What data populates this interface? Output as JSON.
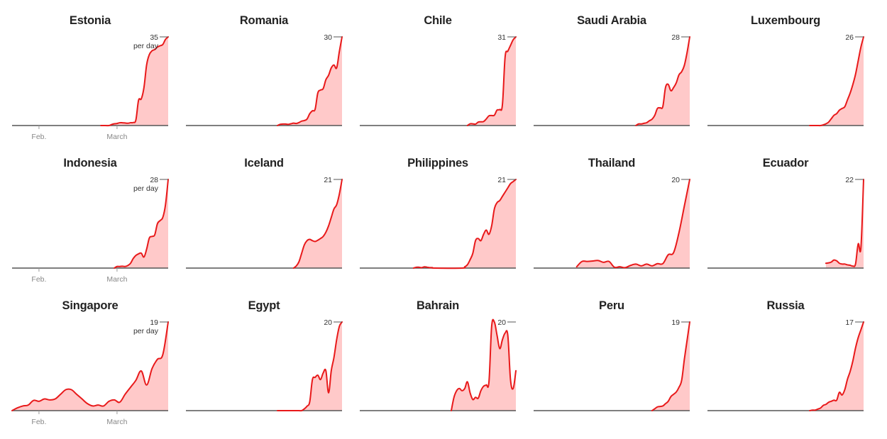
{
  "colors": {
    "line": "#e8191a",
    "fill": "#ffc9c9",
    "axis": "#555555",
    "tick": "#999999",
    "title": "#222222"
  },
  "chart_data": [
    {
      "type": "area",
      "title": "Estonia",
      "ymax": 35,
      "unit": "per day",
      "xaxis": [
        "Feb.",
        "March"
      ],
      "x": [
        55,
        56,
        58,
        59,
        60,
        61,
        62,
        63,
        64,
        65,
        66,
        67,
        68,
        69,
        70,
        71,
        72,
        73,
        74,
        75,
        76,
        77,
        78,
        79,
        80
      ],
      "y": [
        0,
        0,
        0,
        0.4,
        0.7,
        0.8,
        1.1,
        1.1,
        1.0,
        0.9,
        1.1,
        1.2,
        2.2,
        10,
        10.5,
        15,
        24,
        28,
        29.5,
        30,
        31,
        31.5,
        32,
        34,
        35
      ]
    },
    {
      "type": "area",
      "title": "Romania",
      "ymax": 30,
      "xaxis": [],
      "x": [
        56,
        57,
        58,
        59,
        60,
        61,
        62,
        63,
        64,
        65,
        66,
        67,
        68,
        69,
        70,
        71,
        72,
        73,
        74,
        75,
        76,
        77,
        78,
        79,
        80
      ],
      "y": [
        0,
        0.4,
        0.5,
        0.5,
        0.4,
        0.6,
        0.8,
        0.7,
        1.0,
        1.5,
        1.7,
        2.2,
        4,
        5,
        5.5,
        11,
        12,
        12.5,
        15.5,
        17,
        19.5,
        20.5,
        19.5,
        25,
        30
      ]
    },
    {
      "type": "area",
      "title": "Chile",
      "ymax": 31,
      "xaxis": [],
      "x": [
        62,
        63,
        64,
        65,
        66,
        67,
        68,
        69,
        70,
        71,
        72,
        73,
        74,
        75,
        76,
        77,
        78,
        79,
        80
      ],
      "y": [
        0,
        0.6,
        0.6,
        0.5,
        1.2,
        1.3,
        1.4,
        2.3,
        3.4,
        3.5,
        3.6,
        5.4,
        5.6,
        7.3,
        24,
        26,
        28,
        30,
        31
      ]
    },
    {
      "type": "area",
      "title": "Saudi Arabia",
      "ymax": 28,
      "xaxis": [],
      "x": [
        60,
        61,
        62,
        63,
        64,
        65,
        66,
        67,
        68,
        69,
        70,
        71,
        72,
        73,
        74,
        75,
        76,
        77,
        78,
        79,
        80
      ],
      "y": [
        0,
        0.5,
        0.5,
        0.7,
        0.9,
        1.5,
        2.0,
        3.2,
        5.4,
        5.6,
        6.0,
        12,
        13,
        11,
        12,
        13.5,
        16,
        17,
        19,
        23,
        28
      ]
    },
    {
      "type": "area",
      "title": "Luxembourg",
      "ymax": 26,
      "xaxis": [],
      "x": [
        60,
        61,
        62,
        63,
        64,
        65,
        66,
        67,
        68,
        69,
        70,
        71,
        72,
        73,
        74,
        75,
        76,
        77,
        78,
        79,
        80
      ],
      "y": [
        0,
        0,
        0,
        0,
        0,
        0.2,
        0.5,
        1.0,
        2.0,
        3.0,
        3.5,
        4.5,
        5.0,
        5.5,
        7.5,
        9.5,
        12,
        15,
        19,
        23,
        26
      ]
    },
    {
      "type": "area",
      "title": "Indonesia",
      "ymax": 28,
      "unit": "per day",
      "xaxis": [
        "Feb.",
        "March"
      ],
      "x": [
        60,
        61,
        62,
        63,
        64,
        65,
        66,
        67,
        68,
        69,
        70,
        71,
        72,
        73,
        74,
        75,
        76,
        77,
        78,
        79,
        80
      ],
      "y": [
        0,
        0.5,
        0.5,
        0.6,
        0.5,
        0.8,
        1.5,
        3.0,
        4.0,
        4.5,
        4.7,
        3.5,
        6.0,
        9.5,
        10.0,
        10.5,
        14,
        15,
        16,
        20,
        28
      ]
    },
    {
      "type": "area",
      "title": "Iceland",
      "ymax": 21,
      "xaxis": [],
      "x": [
        62,
        63,
        64,
        65,
        66,
        67,
        68,
        69,
        70,
        71,
        72,
        73,
        74,
        75,
        76,
        77,
        78,
        79,
        80
      ],
      "y": [
        0,
        0.5,
        1.5,
        3.5,
        5.5,
        6.5,
        6.8,
        6.5,
        6.3,
        6.6,
        7.0,
        7.5,
        8.5,
        10,
        12,
        14,
        15,
        17.5,
        21
      ]
    },
    {
      "type": "area",
      "title": "Philippines",
      "ymax": 21,
      "xaxis": [],
      "x": [
        42,
        43,
        44,
        45,
        46,
        47,
        48,
        49,
        50,
        60,
        61,
        62,
        63,
        64,
        65,
        66,
        67,
        68,
        69,
        70,
        71,
        72,
        73,
        74,
        75,
        76,
        77,
        78,
        79,
        80
      ],
      "y": [
        0,
        0.2,
        0.2,
        0.1,
        0.3,
        0.2,
        0.1,
        0.1,
        0,
        0,
        0.3,
        0.8,
        2.0,
        3.5,
        6.5,
        7.0,
        6.5,
        8.0,
        9.0,
        8.0,
        10,
        14,
        15.5,
        16,
        17,
        18,
        19,
        20,
        20.5,
        21
      ]
    },
    {
      "type": "area",
      "title": "Thailand",
      "ymax": 20,
      "xaxis": [],
      "x": [
        38,
        40,
        42,
        44,
        46,
        48,
        50,
        52,
        54,
        56,
        58,
        60,
        62,
        64,
        66,
        68,
        70,
        72,
        74,
        76,
        78,
        80
      ],
      "y": [
        0.3,
        1.5,
        1.5,
        1.6,
        1.7,
        1.3,
        1.5,
        0.2,
        0.3,
        0.1,
        0.6,
        0.9,
        0.5,
        0.9,
        0.5,
        1.0,
        1.0,
        3.0,
        3.5,
        8.0,
        14,
        20
      ]
    },
    {
      "type": "area",
      "title": "Ecuador",
      "ymax": 22,
      "xaxis": [],
      "x": [
        66,
        67,
        68,
        69,
        70,
        71,
        72,
        73,
        74,
        75,
        76,
        77,
        78,
        79,
        80
      ],
      "y": [
        1.2,
        1.3,
        1.5,
        2.0,
        1.8,
        1.2,
        1.0,
        1.0,
        0.8,
        0.7,
        0.5,
        1.0,
        6.0,
        5.0,
        22
      ]
    },
    {
      "type": "area",
      "title": "Singapore",
      "ymax": 19,
      "unit": "per day",
      "xaxis": [
        "Feb.",
        "March"
      ],
      "x": [
        22,
        24,
        26,
        28,
        30,
        32,
        34,
        36,
        38,
        40,
        42,
        44,
        46,
        48,
        50,
        52,
        54,
        56,
        58,
        60,
        62,
        64,
        66,
        68,
        70,
        72,
        74,
        76,
        78,
        80
      ],
      "y": [
        0,
        0.6,
        1.0,
        1.2,
        2.2,
        2.0,
        2.5,
        2.3,
        2.5,
        3.5,
        4.5,
        4.5,
        3.5,
        2.5,
        1.5,
        1.0,
        1.2,
        1.0,
        2.0,
        2.3,
        1.8,
        3.5,
        5.0,
        6.5,
        8.5,
        5.5,
        9.0,
        11,
        12,
        19
      ]
    },
    {
      "type": "area",
      "title": "Egypt",
      "ymax": 20,
      "xaxis": [],
      "x": [
        56,
        57,
        58,
        59,
        60,
        61,
        62,
        63,
        64,
        65,
        66,
        67,
        68,
        69,
        70,
        71,
        72,
        73,
        74,
        75,
        76,
        77,
        78,
        79,
        80
      ],
      "y": [
        0,
        0,
        0,
        0,
        0,
        0,
        0,
        0,
        0,
        0,
        0.4,
        1.0,
        2.0,
        7.0,
        7.5,
        8.0,
        7.0,
        8.5,
        9.0,
        4.0,
        9.0,
        12,
        16,
        19,
        20
      ]
    },
    {
      "type": "area",
      "title": "Bahrain",
      "ymax": 20,
      "xaxis": [],
      "x": [
        56,
        57,
        58,
        59,
        60,
        61,
        62,
        63,
        64,
        65,
        66,
        67,
        68,
        69,
        70,
        71,
        72,
        73,
        74,
        75,
        76,
        77,
        78,
        79,
        80
      ],
      "y": [
        0,
        3.0,
        4.5,
        5.0,
        4.5,
        5.0,
        6.5,
        4.0,
        2.5,
        3.0,
        2.8,
        4.5,
        5.5,
        5.8,
        6.5,
        19,
        20,
        17,
        14,
        16,
        17.5,
        17,
        7.0,
        5.0,
        9.0
      ]
    },
    {
      "type": "area",
      "title": "Peru",
      "ymax": 19,
      "xaxis": [],
      "x": [
        66,
        67,
        68,
        69,
        70,
        71,
        72,
        73,
        74,
        75,
        76,
        77,
        78,
        79,
        80
      ],
      "y": [
        0,
        0.4,
        0.8,
        0.9,
        1.0,
        1.5,
        2.0,
        3.0,
        3.5,
        4.0,
        5.0,
        6.5,
        11,
        15,
        19
      ]
    },
    {
      "type": "area",
      "title": "Russia",
      "ymax": 17,
      "xaxis": [],
      "x": [
        60,
        61,
        62,
        63,
        64,
        65,
        66,
        67,
        68,
        69,
        70,
        71,
        72,
        73,
        74,
        75,
        76,
        77,
        78,
        79,
        80
      ],
      "y": [
        0,
        0.1,
        0.1,
        0.3,
        0.5,
        1.0,
        1.2,
        1.6,
        1.8,
        2.0,
        2.0,
        3.5,
        3.0,
        4.0,
        6.0,
        7.5,
        9.5,
        12,
        14,
        15.5,
        17
      ]
    }
  ]
}
